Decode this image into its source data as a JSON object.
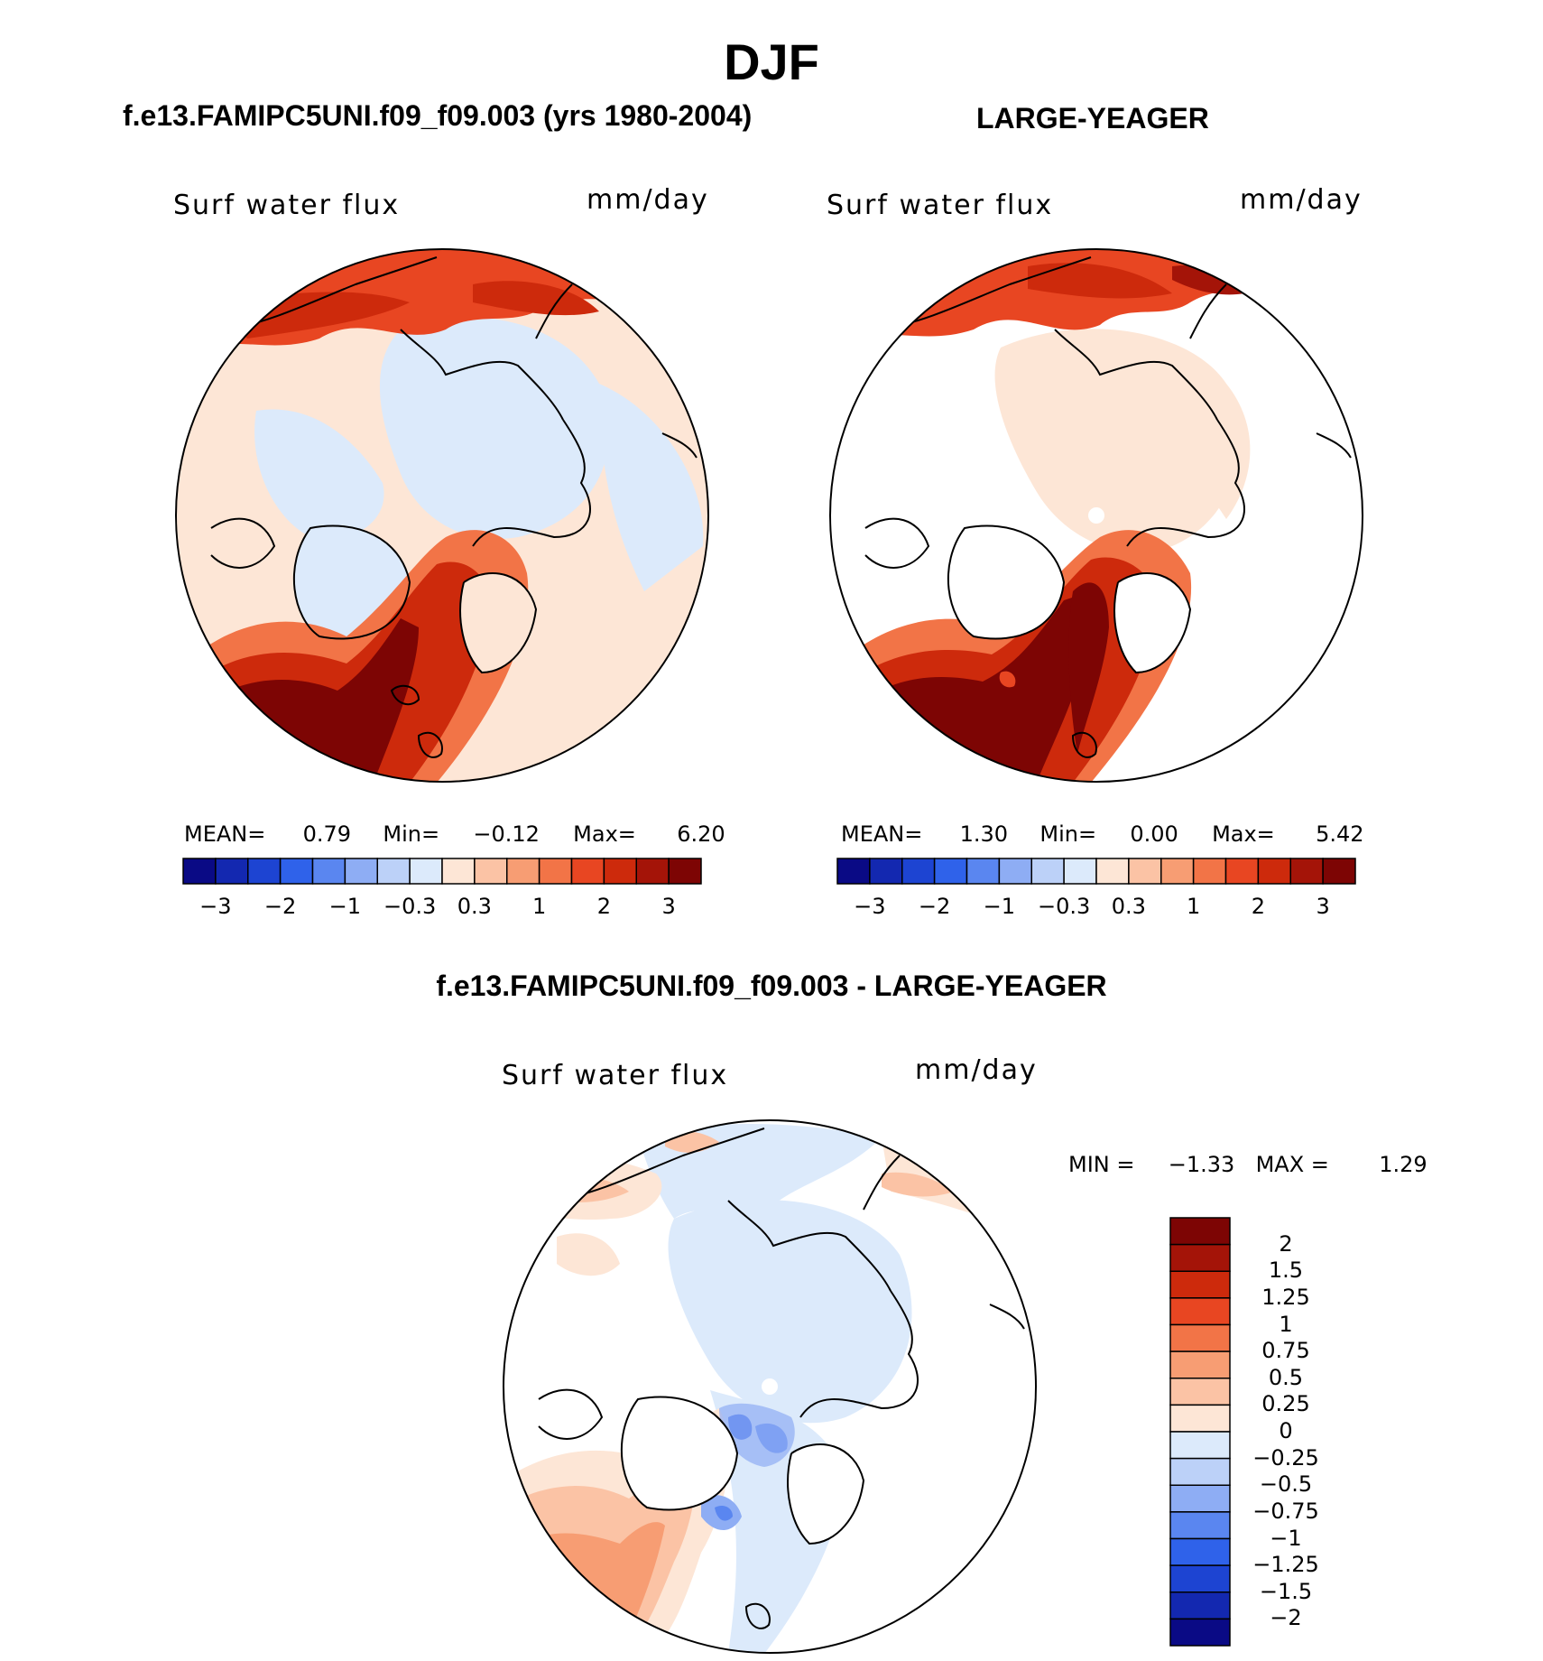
{
  "main_title": "DJF",
  "panels": [
    {
      "case_title": "f.e13.FAMIPC5UNI.f09_f09.003 (yrs 1980-2004)",
      "var_label": "Surf water flux",
      "unit_label": "mm/day",
      "stats": {
        "mean_label": "MEAN=",
        "mean": "0.79",
        "min_label": "Min=",
        "min": "−0.12",
        "max_label": "Max=",
        "max": "6.20"
      }
    },
    {
      "case_title": "LARGE-YEAGER",
      "var_label": "Surf water flux",
      "unit_label": "mm/day",
      "stats": {
        "mean_label": "MEAN=",
        "mean": "1.30",
        "min_label": "Min=",
        "min": "0.00",
        "max_label": "Max=",
        "max": "5.42"
      }
    }
  ],
  "top_colorbar": {
    "colors": [
      "#0a0a85",
      "#1328b0",
      "#1d44d2",
      "#2f62ea",
      "#5a86f0",
      "#8eadf4",
      "#bcd1f8",
      "#dceafb",
      "#fde6d6",
      "#fbc3a5",
      "#f79d73",
      "#f27447",
      "#e84622",
      "#cd2a0c",
      "#a41408",
      "#7d0504"
    ],
    "tick_labels": [
      "−3",
      "−2",
      "−1",
      "−0.3",
      "0.3",
      "1",
      "2",
      "3"
    ]
  },
  "diff": {
    "title": "f.e13.FAMIPC5UNI.f09_f09.003 - LARGE-YEAGER",
    "var_label": "Surf water flux",
    "unit_label": "mm/day",
    "minmax": {
      "min_label": "MIN =",
      "min": "−1.33",
      "max_label": "MAX =",
      "max": "1.29"
    },
    "colorbar": {
      "colors": [
        "#7d0504",
        "#a41408",
        "#cd2a0c",
        "#e84622",
        "#f27447",
        "#f79d73",
        "#fbc3a5",
        "#fde6d6",
        "#dceafb",
        "#bcd1f8",
        "#8eadf4",
        "#5a86f0",
        "#2f62ea",
        "#1d44d2",
        "#1328b0",
        "#0a0a85"
      ],
      "labels": [
        "2",
        "1.5",
        "1.25",
        "1",
        "0.75",
        "0.5",
        "0.25",
        "0",
        "−0.25",
        "−0.5",
        "−0.75",
        "−1",
        "−1.25",
        "−1.5",
        "−2"
      ]
    }
  }
}
